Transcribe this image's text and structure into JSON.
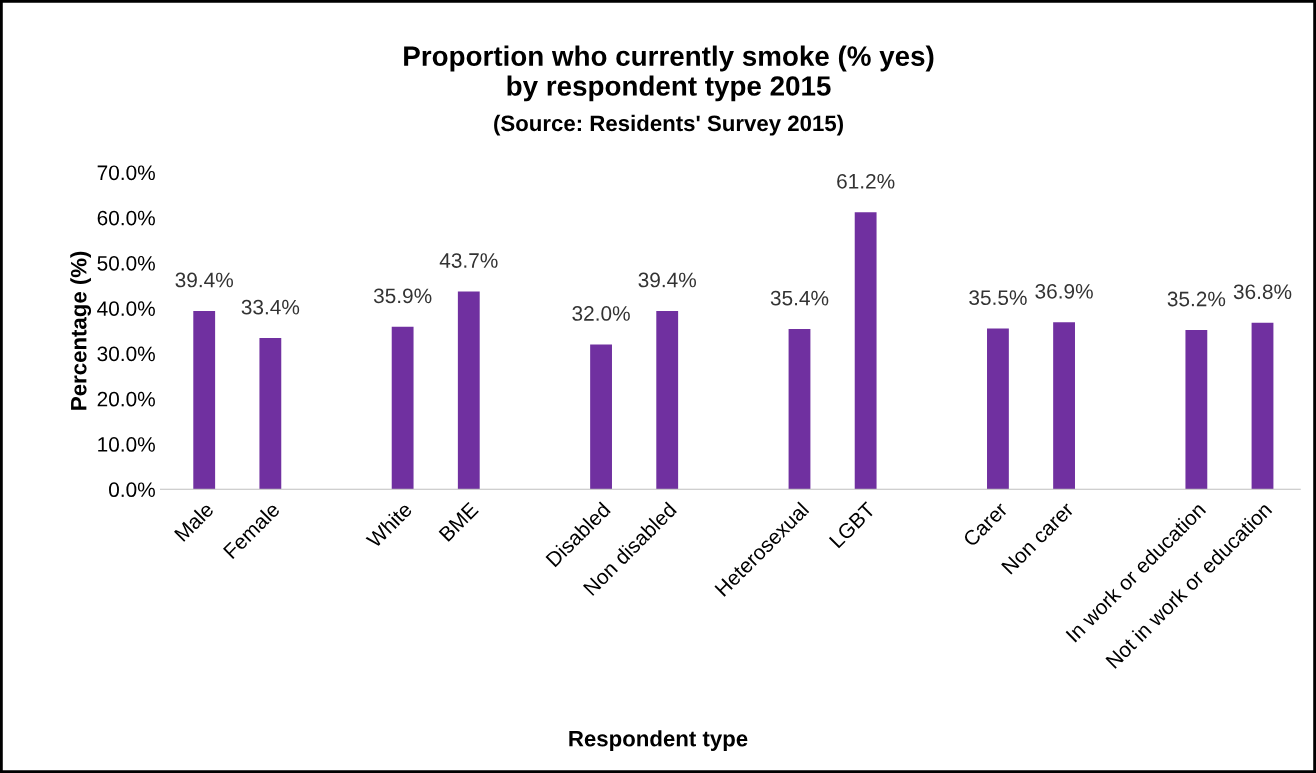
{
  "chart_data": {
    "type": "bar",
    "title": "Proportion who currently smoke (% yes)\nby respondent type 2015",
    "subtitle": "(Source: Residents' Survey 2015)",
    "xlabel": "Respondent type",
    "ylabel": "Percentage (%)",
    "categories": [
      "Male",
      "Female",
      null,
      "White",
      "BME",
      null,
      "Disabled",
      "Non disabled",
      null,
      "Heterosexual",
      "LGBT",
      null,
      "Carer",
      "Non carer",
      null,
      "In work or education",
      "Not in work or education"
    ],
    "values": [
      39.4,
      33.4,
      null,
      35.9,
      43.7,
      null,
      32.0,
      39.4,
      null,
      35.4,
      61.2,
      null,
      35.5,
      36.9,
      null,
      35.2,
      36.8
    ],
    "value_labels": [
      "39.4%",
      "33.4%",
      null,
      "35.9%",
      "43.7%",
      null,
      "32.0%",
      "39.4%",
      null,
      "35.4%",
      "61.2%",
      null,
      "35.5%",
      "36.9%",
      null,
      "35.2%",
      "36.8%"
    ],
    "color": "#7030a0",
    "ylim": [
      0,
      70
    ],
    "yticks": [
      {
        "value": 0,
        "label": "0.0%"
      },
      {
        "value": 10,
        "label": "10.0%"
      },
      {
        "value": 20,
        "label": "20.0%"
      },
      {
        "value": 30,
        "label": "30.0%"
      },
      {
        "value": 40,
        "label": "40.0%"
      },
      {
        "value": 50,
        "label": "50.0%"
      },
      {
        "value": 60,
        "label": "60.0%"
      },
      {
        "value": 70,
        "label": "70.0%"
      }
    ],
    "grid": false,
    "legend": false
  }
}
